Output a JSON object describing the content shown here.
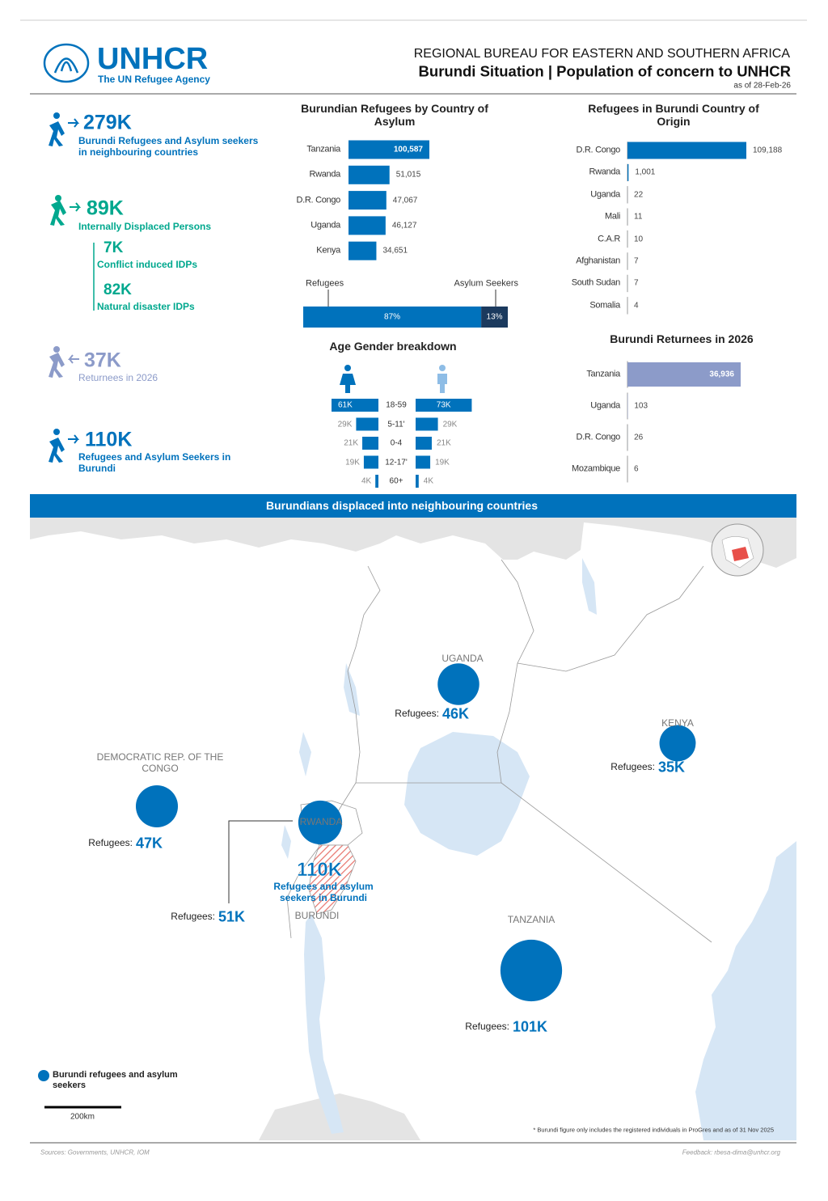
{
  "header": {
    "org": "UNHCR",
    "tagline": "The UN Refugee Agency",
    "bureau": "REGIONAL BUREAU FOR EASTERN AND SOUTHERN AFRICA",
    "title": "Burundi Situation | Population of concern to UNHCR",
    "date": "as of 28-Feb-26"
  },
  "kpis": [
    {
      "value": "279K",
      "label": "Burundi Refugees and Asylum seekers in neighbouring countries"
    },
    {
      "value": "89K",
      "label": "Internally Displaced Persons",
      "sub": [
        {
          "value": "7K",
          "label": "Conflict induced IDPs"
        },
        {
          "value": "82K",
          "label": "Natural disaster IDPs"
        }
      ]
    },
    {
      "value": "37K",
      "label": "Returnees in 2026"
    },
    {
      "value": "110K",
      "label": "Refugees and Asylum Seekers in Burundi"
    }
  ],
  "chart_data": [
    {
      "type": "hbar",
      "title": "Burundian Refugees by Country of Asylum",
      "categories": [
        "Tanzania",
        "Rwanda",
        "D.R. Congo",
        "Uganda",
        "Kenya"
      ],
      "values": [
        100587,
        51015,
        47067,
        46127,
        34651
      ],
      "value_labels": [
        "100,587",
        "51,015",
        "47,067",
        "46,127",
        "34,651"
      ],
      "color": "#0072bc"
    },
    {
      "type": "stacked-bar",
      "series": [
        {
          "name": "Refugees",
          "color": "#0072bc",
          "values": [
            87
          ],
          "value_labels": [
            "87%"
          ]
        },
        {
          "name": "Asylum Seekers",
          "color": "#1b3a5e",
          "values": [
            13
          ],
          "value_labels": [
            "13%"
          ]
        }
      ]
    },
    {
      "type": "pyramid",
      "title": "Age Gender breakdown",
      "categories": [
        "18-59",
        "5-11'",
        "0-4",
        "12-17'",
        "60+"
      ],
      "series": [
        {
          "color": "#0072bc",
          "values": [
            61000,
            29000,
            21000,
            19000,
            4000
          ],
          "value_labels": [
            "61K",
            "29K",
            "21K",
            "19K",
            "4K"
          ]
        },
        {
          "color": "#0072bc",
          "values": [
            73000,
            29000,
            21000,
            19000,
            4000
          ],
          "value_labels": [
            "73K",
            "29K",
            "21K",
            "19K",
            "4K"
          ]
        }
      ]
    },
    {
      "type": "hbar",
      "title": "Refugees in Burundi Country of Origin",
      "categories": [
        "D.R. Congo",
        "Rwanda",
        "Uganda",
        "Mali",
        "C.A.R",
        "Afghanistan",
        "South Sudan",
        "Somalia"
      ],
      "values": [
        109188,
        1001,
        22,
        11,
        10,
        7,
        7,
        4
      ],
      "value_labels": [
        "109,188",
        "1,001",
        "22",
        "11",
        "10",
        "7",
        "7",
        "4"
      ],
      "color": "#0072bc"
    },
    {
      "type": "hbar",
      "title": "Burundi Returnees in 2026",
      "categories": [
        "Tanzania",
        "Uganda",
        "D.R. Congo",
        "Mozambique"
      ],
      "values": [
        36936,
        103,
        26,
        6
      ],
      "value_labels": [
        "36,936",
        "103",
        "26",
        "6"
      ],
      "color": "#8c9bc9"
    },
    {
      "type": "bubble-map",
      "title": "Burundians displaced into neighbouring countries",
      "categories": [
        "UGANDA",
        "KENYA",
        "DEMOCRATIC REP. OF THE CONGO",
        "RWANDA",
        "TANZANIA"
      ],
      "value_prefix": "Refugees:",
      "series": [
        {
          "name": "Burundi refugees and asylum seekers",
          "color": "#0072bc",
          "values": [
            46000,
            35000,
            47000,
            51000,
            101000
          ],
          "value_labels": [
            "46K",
            "35K",
            "47K",
            "51K",
            "101K"
          ]
        }
      ]
    }
  ],
  "map": {
    "burundi_value": "110K",
    "burundi_note": "Refugees and asylum seekers in Burundi",
    "burundi_name": "BURUNDI",
    "scale": "200km",
    "footnote": "* Burundi figure only includes the registered individuals in ProGres and as of 31 Nov 2025"
  },
  "footer": {
    "sources": "Sources: Governments, UNHCR, IOM",
    "feedback": "Feedback: rbesa-dima@unhcr.org"
  }
}
